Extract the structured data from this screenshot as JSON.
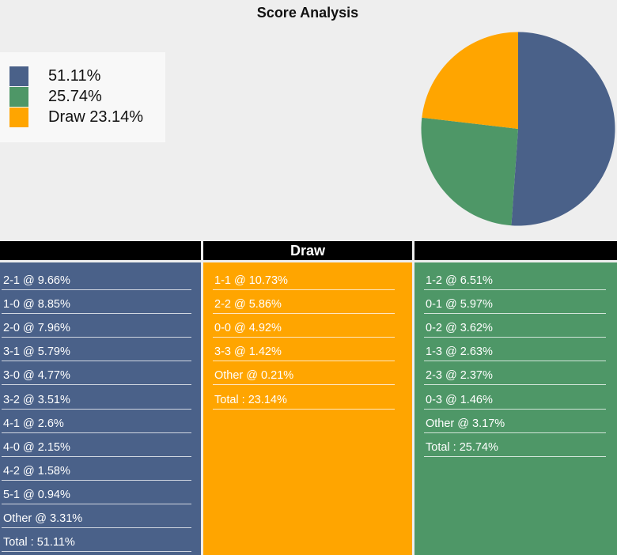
{
  "header": {
    "title": "Score Analysis"
  },
  "colors": {
    "home": "#4a6189",
    "away": "#4e9767",
    "draw": "#ffa500"
  },
  "chart_data": {
    "type": "pie",
    "title": "Score Analysis",
    "legend_position": "top-left",
    "slices": [
      {
        "label": "",
        "legend_label": "51.11%",
        "value": 51.11,
        "color": "#4a6189"
      },
      {
        "label": "",
        "legend_label": "25.74%",
        "value": 25.74,
        "color": "#4e9767"
      },
      {
        "label": "Draw",
        "legend_label": "Draw 23.14%",
        "value": 23.14,
        "color": "#ffa500"
      }
    ]
  },
  "columns": {
    "home": {
      "header": "",
      "items": [
        "2-1 @ 9.66%",
        "1-0 @ 8.85%",
        "2-0 @ 7.96%",
        "3-1 @ 5.79%",
        "3-0 @ 4.77%",
        "3-2 @ 3.51%",
        "4-1 @ 2.6%",
        "4-0 @ 2.15%",
        "4-2 @ 1.58%",
        "5-1 @ 0.94%",
        "Other @ 3.31%",
        "Total : 51.11%"
      ]
    },
    "draw": {
      "header": "Draw",
      "items": [
        "1-1 @ 10.73%",
        "2-2 @ 5.86%",
        "0-0 @ 4.92%",
        "3-3 @ 1.42%",
        "Other @ 0.21%",
        "Total : 23.14%"
      ]
    },
    "away": {
      "header": "",
      "items": [
        "1-2 @ 6.51%",
        "0-1 @ 5.97%",
        "0-2 @ 3.62%",
        "1-3 @ 2.63%",
        "2-3 @ 2.37%",
        "0-3 @ 1.46%",
        "Other @ 3.17%",
        "Total : 25.74%"
      ]
    }
  }
}
